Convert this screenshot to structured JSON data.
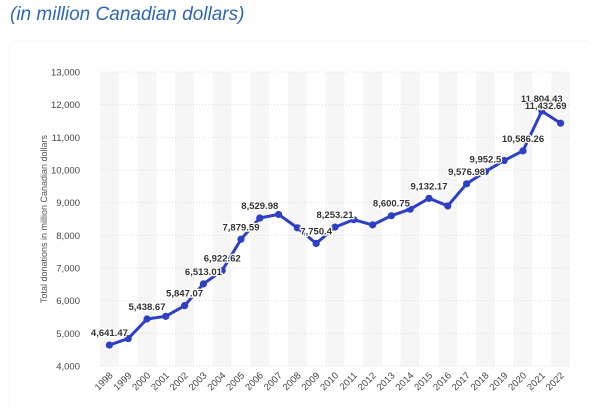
{
  "header": {
    "subtitle": "(in million Canadian dollars)"
  },
  "chart_data": {
    "type": "line",
    "ylabel": "Total donations in million Canadian dollars",
    "ylim": [
      4000,
      13000
    ],
    "yticks": [
      4000,
      5000,
      6000,
      7000,
      8000,
      9000,
      10000,
      11000,
      12000,
      13000
    ],
    "ytick_labels": [
      "4,000",
      "5,000",
      "6,000",
      "7,000",
      "8,000",
      "9,000",
      "10,000",
      "11,000",
      "12,000",
      "13,000"
    ],
    "grid": "horizontal",
    "legend": "none",
    "categories": [
      "1998",
      "1999",
      "2000",
      "2001",
      "2002",
      "2003",
      "2004",
      "2005",
      "2006",
      "2007",
      "2008",
      "2009",
      "2010",
      "2011",
      "2012",
      "2013",
      "2014",
      "2015",
      "2016",
      "2017",
      "2018",
      "2019",
      "2020",
      "2021",
      "2022"
    ],
    "series": [
      {
        "color": "#2d3fc4",
        "values": [
          4641.47,
          4840,
          5438.67,
          5520,
          5847.07,
          6513.01,
          6922.62,
          7879.59,
          8529.98,
          8640,
          8230,
          7750.4,
          8253.21,
          8480,
          8320,
          8600.75,
          8800,
          9132.17,
          8900,
          9576.98,
          9952.5,
          10290,
          10586.26,
          11804.43,
          11432.69
        ],
        "labels": [
          "4,641.47",
          "",
          "5,438.67",
          "",
          "5,847.07",
          "6,513.01",
          "6,922.62",
          "7,879.59",
          "8,529.98",
          "",
          "",
          "7,750.4",
          "8,253.21",
          "",
          "",
          "8,600.75",
          "",
          "9,132.17",
          "",
          "9,576.98",
          "9,952.5",
          "",
          "10,586.26",
          "11,804.43",
          "11,432.69"
        ]
      }
    ]
  }
}
